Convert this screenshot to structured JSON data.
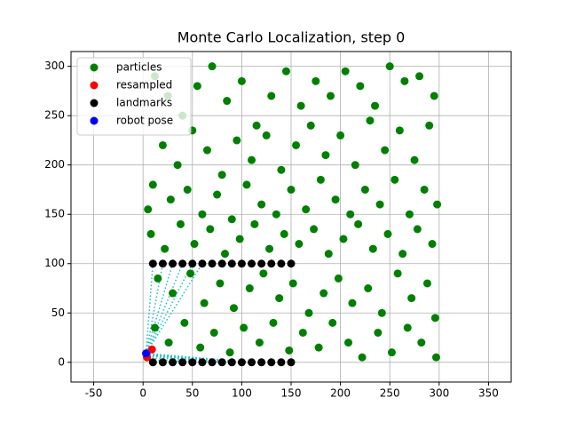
{
  "chart_data": {
    "type": "scatter",
    "title": "Monte Carlo Localization, step 0",
    "xlim": [
      -73,
      373
    ],
    "ylim": [
      -20,
      315
    ],
    "xticks": [
      -50,
      0,
      50,
      100,
      150,
      200,
      250,
      300,
      350
    ],
    "yticks": [
      0,
      50,
      100,
      150,
      200,
      250,
      300
    ],
    "grid": true,
    "legend": "upper left",
    "series": [
      {
        "name": "particles",
        "color": "#008000",
        "x": [
          5,
          12,
          25,
          40,
          55,
          70,
          85,
          100,
          115,
          130,
          145,
          160,
          175,
          190,
          205,
          220,
          235,
          250,
          265,
          280,
          295,
          20,
          35,
          50,
          65,
          80,
          95,
          110,
          125,
          140,
          155,
          170,
          185,
          200,
          215,
          230,
          245,
          260,
          275,
          290,
          10,
          28,
          45,
          60,
          75,
          90,
          105,
          120,
          135,
          150,
          165,
          180,
          195,
          210,
          225,
          240,
          255,
          270,
          285,
          298,
          8,
          22,
          38,
          52,
          68,
          83,
          98,
          113,
          128,
          143,
          158,
          173,
          188,
          203,
          218,
          233,
          248,
          263,
          278,
          293,
          15,
          30,
          48,
          62,
          78,
          92,
          108,
          122,
          138,
          152,
          168,
          183,
          198,
          212,
          228,
          242,
          258,
          272,
          288,
          296,
          12,
          26,
          42,
          58,
          72,
          88,
          102,
          118,
          132,
          148,
          162,
          178,
          192,
          208,
          222,
          238,
          252,
          268,
          282,
          297
        ],
        "values": [
          155,
          290,
          270,
          250,
          280,
          300,
          265,
          285,
          240,
          270,
          295,
          260,
          285,
          270,
          295,
          280,
          260,
          300,
          285,
          290,
          270,
          220,
          200,
          235,
          215,
          190,
          225,
          205,
          230,
          195,
          220,
          240,
          210,
          230,
          200,
          245,
          215,
          235,
          205,
          240,
          180,
          165,
          175,
          150,
          170,
          145,
          180,
          160,
          150,
          175,
          155,
          185,
          165,
          150,
          175,
          160,
          185,
          150,
          175,
          160,
          130,
          115,
          140,
          120,
          135,
          110,
          125,
          140,
          115,
          130,
          120,
          135,
          110,
          125,
          140,
          115,
          130,
          110,
          135,
          120,
          85,
          70,
          90,
          60,
          80,
          55,
          75,
          90,
          65,
          80,
          50,
          70,
          85,
          60,
          75,
          50,
          90,
          65,
          80,
          45,
          35,
          20,
          40,
          15,
          30,
          10,
          35,
          20,
          40,
          12,
          30,
          15,
          40,
          20,
          5,
          30,
          10,
          35,
          20,
          5
        ]
      },
      {
        "name": "resampled",
        "color": "#ff0000",
        "x": [
          4,
          9
        ],
        "values": [
          5,
          13
        ]
      },
      {
        "name": "landmarks",
        "color": "#000000",
        "x": [
          10,
          20,
          30,
          40,
          50,
          60,
          70,
          80,
          90,
          100,
          110,
          120,
          130,
          140,
          150,
          10,
          20,
          30,
          40,
          50,
          60,
          70,
          80,
          90,
          100,
          110,
          120,
          130,
          140,
          150
        ],
        "values": [
          100,
          100,
          100,
          100,
          100,
          100,
          100,
          100,
          100,
          100,
          100,
          100,
          100,
          100,
          100,
          0,
          0,
          0,
          0,
          0,
          0,
          0,
          0,
          0,
          0,
          0,
          0,
          0,
          0,
          0
        ]
      },
      {
        "name": "robot pose",
        "color": "#0000ff",
        "x": [
          3
        ],
        "values": [
          9
        ]
      }
    ]
  }
}
